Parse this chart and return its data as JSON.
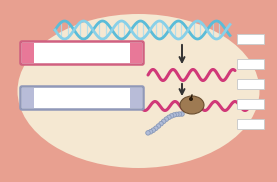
{
  "cell_bg": "#f5e8d2",
  "cell_border_color": "#e8a090",
  "cell_border_thick": 14,
  "dna_blue1": "#5bbcd8",
  "dna_blue2": "#88d0e8",
  "dna_link": "#a8ddf0",
  "mrna_color": "#d03878",
  "arrow_color": "#333333",
  "ribosome_color": "#9e7a52",
  "ribosome_edge": "#6a4e30",
  "chain_color": "#b0bcd8",
  "chain_edge": "#8898b8",
  "label_pink_fill": "#e87898",
  "label_pink_border": "#d06080",
  "label_gray_fill": "#b8bcd8",
  "label_gray_border": "#9098b8",
  "label_white": "#ffffff",
  "label_right_fill": "#ffffff",
  "label_right_border": "#cccccc",
  "figsize": [
    2.77,
    1.82
  ],
  "dpi": 100
}
